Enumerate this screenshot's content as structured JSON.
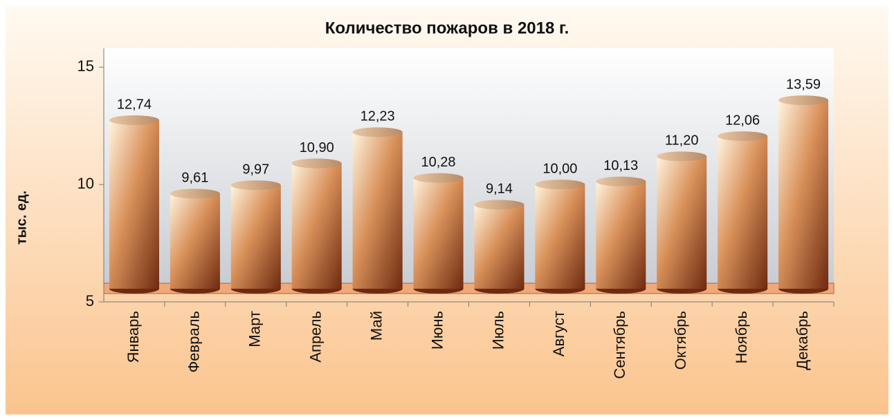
{
  "chart_data": {
    "type": "bar",
    "title": "Количество пожаров в 2018 г.",
    "y_label": "тыс. ед.",
    "categories": [
      "Январь",
      "Февраль",
      "Март",
      "Апрель",
      "Май",
      "Июнь",
      "Июль",
      "Август",
      "Сентябрь",
      "Октябрь",
      "Ноябрь",
      "Декабрь"
    ],
    "values": [
      12.74,
      9.61,
      9.97,
      10.9,
      12.23,
      10.28,
      9.14,
      10.0,
      10.13,
      11.2,
      12.06,
      13.59
    ],
    "value_labels": [
      "12,74",
      "9,61",
      "9,97",
      "10,90",
      "12,23",
      "10,28",
      "9,14",
      "10,00",
      "10,13",
      "11,20",
      "12,06",
      "13,59"
    ],
    "color": "#b5502a",
    "ylim": [
      5,
      15.8
    ],
    "yticks": [
      5,
      10,
      15
    ],
    "grid": false
  }
}
